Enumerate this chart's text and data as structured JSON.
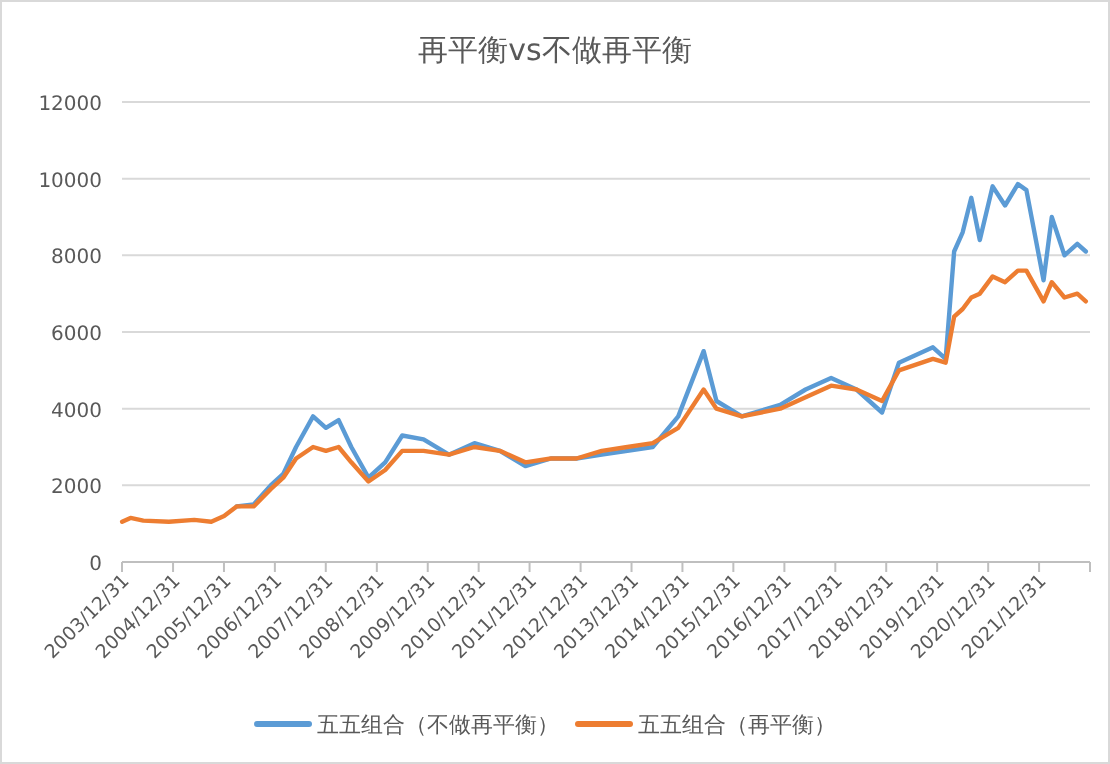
{
  "chart_data": {
    "type": "line",
    "title": "再平衡vs不做再平衡",
    "x": [
      "2004-01",
      "2004-03",
      "2004-06",
      "2004-12",
      "2005-06",
      "2005-10",
      "2006-01",
      "2006-04",
      "2006-08",
      "2006-12",
      "2007-03",
      "2007-06",
      "2007-10",
      "2008-01",
      "2008-04",
      "2008-07",
      "2008-11",
      "2009-03",
      "2009-07",
      "2009-12",
      "2010-06",
      "2010-12",
      "2011-06",
      "2011-12",
      "2012-06",
      "2012-12",
      "2013-06",
      "2013-12",
      "2014-06",
      "2014-12",
      "2015-06",
      "2015-09",
      "2016-03",
      "2016-12",
      "2017-06",
      "2017-12",
      "2018-06",
      "2018-12",
      "2019-04",
      "2019-12",
      "2020-03",
      "2020-05",
      "2020-07",
      "2020-09",
      "2020-11",
      "2021-02",
      "2021-05",
      "2021-08",
      "2021-10",
      "2022-02",
      "2022-04",
      "2022-07",
      "2022-10",
      "2022-12"
    ],
    "series": [
      {
        "name": "五五组合（不做再平衡）",
        "color": "#5b9bd5",
        "values": [
          null,
          null,
          null,
          null,
          null,
          null,
          null,
          1450,
          1500,
          2000,
          2300,
          3000,
          3800,
          3500,
          3700,
          3000,
          2200,
          2600,
          3300,
          3200,
          2800,
          3100,
          2900,
          2500,
          2700,
          2700,
          2800,
          2900,
          3000,
          3800,
          5500,
          4200,
          3800,
          4100,
          4500,
          4800,
          4500,
          3900,
          5200,
          5600,
          5300,
          8100,
          8600,
          9500,
          8400,
          9800,
          9300,
          9860,
          9700,
          7350,
          9000,
          8000,
          8300,
          8100
        ]
      },
      {
        "name": "五五组合（再平衡）",
        "color": "#ed7d31",
        "values": [
          1050,
          1150,
          1080,
          1050,
          1100,
          1050,
          1200,
          1450,
          1450,
          1900,
          2200,
          2700,
          3000,
          2900,
          3000,
          2600,
          2100,
          2400,
          2900,
          2900,
          2800,
          3000,
          2900,
          2600,
          2700,
          2700,
          2900,
          3000,
          3100,
          3500,
          4500,
          4000,
          3800,
          4000,
          4300,
          4600,
          4500,
          4200,
          5000,
          5300,
          5200,
          6400,
          6600,
          6900,
          7000,
          7450,
          7300,
          7600,
          7600,
          6800,
          7300,
          6900,
          7000,
          6800
        ]
      }
    ],
    "xlim": [
      "2003-12-31",
      "2022-12-31"
    ],
    "xticks": [
      {
        "value": "2003-12-31",
        "label": "2003/12/31"
      },
      {
        "value": "2004-12-31",
        "label": "2004/12/31"
      },
      {
        "value": "2005-12-31",
        "label": "2005/12/31"
      },
      {
        "value": "2006-12-31",
        "label": "2006/12/31"
      },
      {
        "value": "2007-12-31",
        "label": "2007/12/31"
      },
      {
        "value": "2008-12-31",
        "label": "2008/12/31"
      },
      {
        "value": "2009-12-31",
        "label": "2009/12/31"
      },
      {
        "value": "2010-12-31",
        "label": "2010/12/31"
      },
      {
        "value": "2011-12-31",
        "label": "2011/12/31"
      },
      {
        "value": "2012-12-31",
        "label": "2012/12/31"
      },
      {
        "value": "2013-12-31",
        "label": "2013/12/31"
      },
      {
        "value": "2014-12-31",
        "label": "2014/12/31"
      },
      {
        "value": "2015-12-31",
        "label": "2015/12/31"
      },
      {
        "value": "2016-12-31",
        "label": "2016/12/31"
      },
      {
        "value": "2017-12-31",
        "label": "2017/12/31"
      },
      {
        "value": "2018-12-31",
        "label": "2018/12/31"
      },
      {
        "value": "2019-12-31",
        "label": "2019/12/31"
      },
      {
        "value": "2020-12-31",
        "label": "2020/12/31"
      },
      {
        "value": "2021-12-31",
        "label": "2021/12/31"
      }
    ],
    "ylim": [
      0,
      12000
    ],
    "yticks": [
      0,
      2000,
      4000,
      6000,
      8000,
      10000,
      12000
    ],
    "grid": "y",
    "legend": "bottom",
    "marker": "none",
    "line_style": "solid"
  }
}
